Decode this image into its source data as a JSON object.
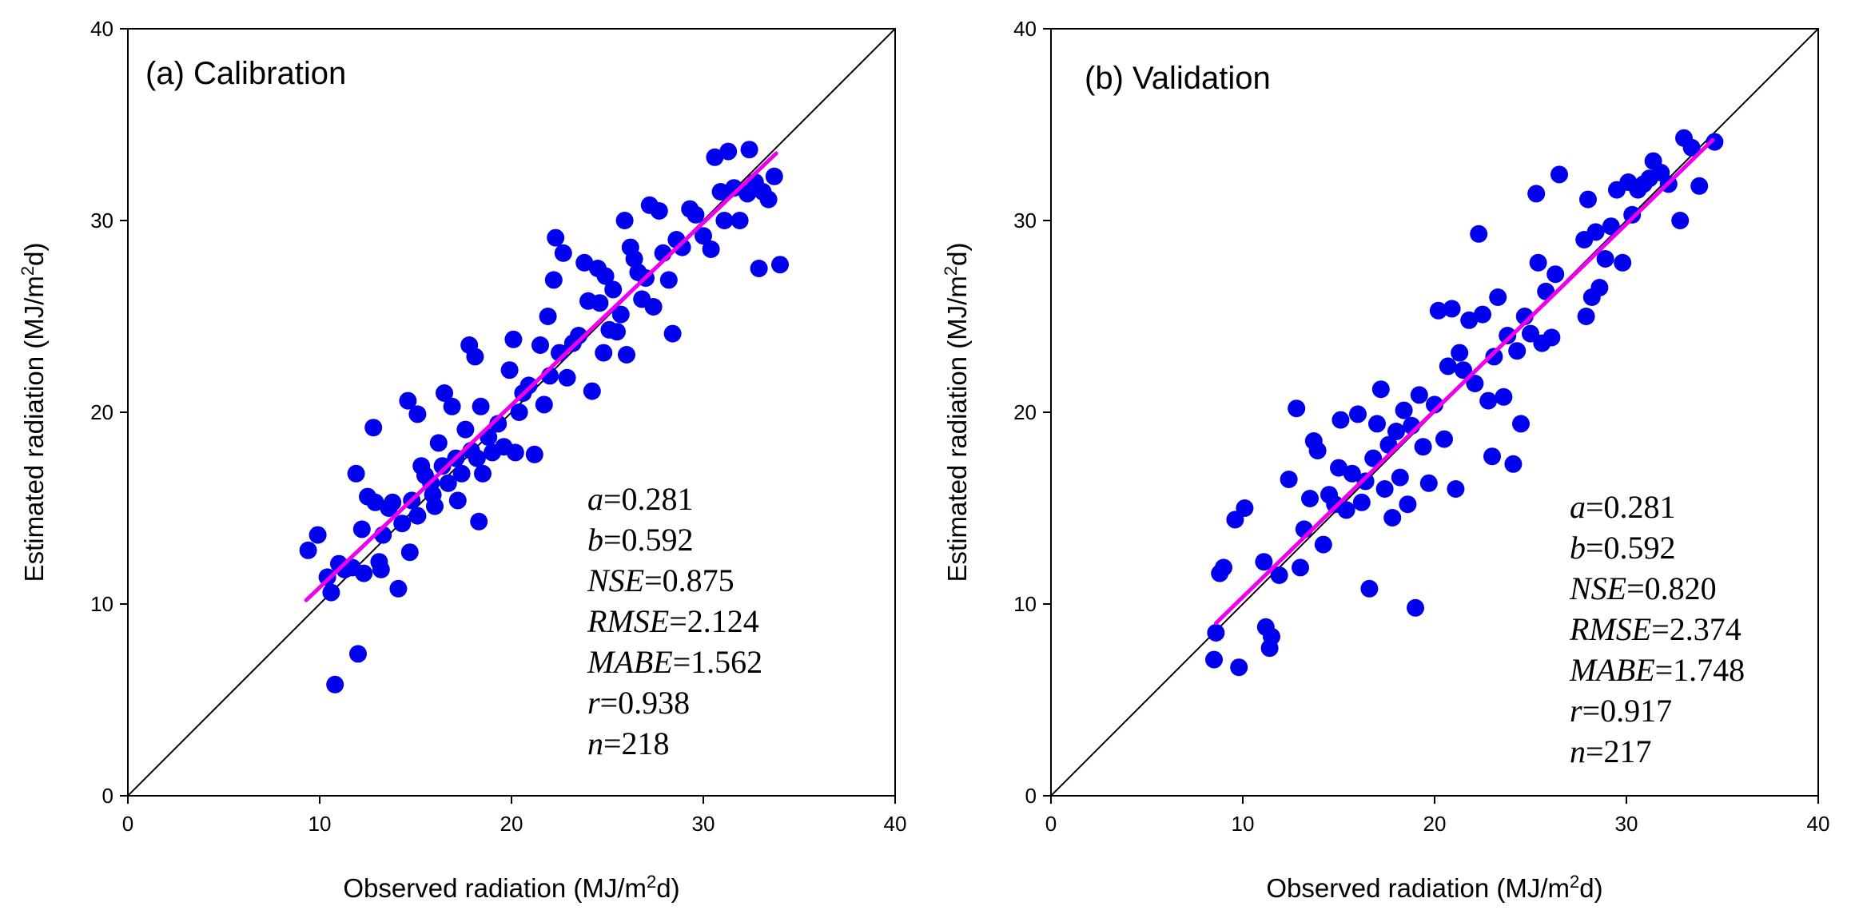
{
  "chart_data": [
    {
      "type": "scatter",
      "title": "(a) Calibration",
      "xlabel": {
        "pre": "Observed radiation (MJ/m",
        "sup": "2",
        "post": "d)"
      },
      "ylabel": {
        "pre": "Estimated radiation (MJ/m",
        "sup": "2",
        "post": "d)"
      },
      "xlim": [
        0,
        40
      ],
      "ylim": [
        0,
        40
      ],
      "xticks": [
        "0",
        "10",
        "20",
        "30",
        "40"
      ],
      "yticks": [
        "0",
        "10",
        "20",
        "30",
        "40"
      ],
      "marker_color": "#0000ee",
      "fit_color": "#ee00ee",
      "identity_line": [
        [
          0,
          0
        ],
        [
          40,
          40
        ]
      ],
      "fit_line": {
        "x": [
          9.3,
          33.8
        ],
        "y": [
          10.2,
          33.5
        ]
      },
      "stats": [
        {
          "sym": "a",
          "val": "=0.281"
        },
        {
          "sym": "b",
          "val": "=0.592"
        },
        {
          "sym": "NSE",
          "val": "=0.875"
        },
        {
          "sym": "RMSE",
          "val": "=2.124"
        },
        {
          "sym": "MABE",
          "val": "=1.562"
        },
        {
          "sym": "r",
          "val": "=0.938"
        },
        {
          "sym": "n",
          "val": "=218"
        }
      ],
      "series": [
        {
          "name": "Calibration",
          "points": [
            [
              9.4,
              12.8
            ],
            [
              9.9,
              13.6
            ],
            [
              10.4,
              11.4
            ],
            [
              10.6,
              10.6
            ],
            [
              10.8,
              5.8
            ],
            [
              11.0,
              12.1
            ],
            [
              11.3,
              11.8
            ],
            [
              11.7,
              11.9
            ],
            [
              11.9,
              16.8
            ],
            [
              12.0,
              7.4
            ],
            [
              12.2,
              13.9
            ],
            [
              12.3,
              11.6
            ],
            [
              12.5,
              15.6
            ],
            [
              12.8,
              19.2
            ],
            [
              12.9,
              15.3
            ],
            [
              13.1,
              12.2
            ],
            [
              13.2,
              11.8
            ],
            [
              13.3,
              13.6
            ],
            [
              13.6,
              15.0
            ],
            [
              13.8,
              15.3
            ],
            [
              14.1,
              10.8
            ],
            [
              14.3,
              14.2
            ],
            [
              14.6,
              20.6
            ],
            [
              14.7,
              12.7
            ],
            [
              14.8,
              15.4
            ],
            [
              15.1,
              19.9
            ],
            [
              15.1,
              14.6
            ],
            [
              15.3,
              17.2
            ],
            [
              15.5,
              16.7
            ],
            [
              15.8,
              16.3
            ],
            [
              15.9,
              15.7
            ],
            [
              16.0,
              15.1
            ],
            [
              16.2,
              18.4
            ],
            [
              16.4,
              17.2
            ],
            [
              16.5,
              21.0
            ],
            [
              16.7,
              16.3
            ],
            [
              16.9,
              20.3
            ],
            [
              17.1,
              17.6
            ],
            [
              17.2,
              15.4
            ],
            [
              17.4,
              16.8
            ],
            [
              17.6,
              19.1
            ],
            [
              17.8,
              23.5
            ],
            [
              17.9,
              18.0
            ],
            [
              18.1,
              22.9
            ],
            [
              18.2,
              17.6
            ],
            [
              18.3,
              14.3
            ],
            [
              18.4,
              20.3
            ],
            [
              18.5,
              16.8
            ],
            [
              18.8,
              18.7
            ],
            [
              19.0,
              17.9
            ],
            [
              19.3,
              19.4
            ],
            [
              19.6,
              18.2
            ],
            [
              19.9,
              22.2
            ],
            [
              20.1,
              23.8
            ],
            [
              20.2,
              17.9
            ],
            [
              20.4,
              20.0
            ],
            [
              20.6,
              21.0
            ],
            [
              20.9,
              21.4
            ],
            [
              21.2,
              17.8
            ],
            [
              21.5,
              23.5
            ],
            [
              21.7,
              20.4
            ],
            [
              21.9,
              25.0
            ],
            [
              22.0,
              21.9
            ],
            [
              22.2,
              26.9
            ],
            [
              22.3,
              29.1
            ],
            [
              22.5,
              23.1
            ],
            [
              22.7,
              28.3
            ],
            [
              22.9,
              21.8
            ],
            [
              23.2,
              23.6
            ],
            [
              23.5,
              24.0
            ],
            [
              23.8,
              27.8
            ],
            [
              24.0,
              25.8
            ],
            [
              24.2,
              21.1
            ],
            [
              24.5,
              27.5
            ],
            [
              24.6,
              25.7
            ],
            [
              24.8,
              23.1
            ],
            [
              24.9,
              27.1
            ],
            [
              25.1,
              24.3
            ],
            [
              25.3,
              26.4
            ],
            [
              25.5,
              24.2
            ],
            [
              25.7,
              25.1
            ],
            [
              25.9,
              30.0
            ],
            [
              26.0,
              23.0
            ],
            [
              26.2,
              28.6
            ],
            [
              26.4,
              28.0
            ],
            [
              26.6,
              27.3
            ],
            [
              26.8,
              25.9
            ],
            [
              27.0,
              27.0
            ],
            [
              27.2,
              30.8
            ],
            [
              27.4,
              25.5
            ],
            [
              27.7,
              30.5
            ],
            [
              27.9,
              28.3
            ],
            [
              28.2,
              26.9
            ],
            [
              28.4,
              24.1
            ],
            [
              28.6,
              29.0
            ],
            [
              28.9,
              28.6
            ],
            [
              29.3,
              30.6
            ],
            [
              29.6,
              30.3
            ],
            [
              30.0,
              29.2
            ],
            [
              30.4,
              28.5
            ],
            [
              30.6,
              33.3
            ],
            [
              30.9,
              31.5
            ],
            [
              31.1,
              30.0
            ],
            [
              31.3,
              33.6
            ],
            [
              31.6,
              31.7
            ],
            [
              31.9,
              30.0
            ],
            [
              32.3,
              31.4
            ],
            [
              32.4,
              33.7
            ],
            [
              32.7,
              32.0
            ],
            [
              32.9,
              27.5
            ],
            [
              33.1,
              31.5
            ],
            [
              33.4,
              31.1
            ],
            [
              33.7,
              32.3
            ],
            [
              34.0,
              27.7
            ]
          ]
        }
      ]
    },
    {
      "type": "scatter",
      "title": "(b) Validation",
      "xlabel": {
        "pre": "Observed radiation (MJ/m",
        "sup": "2",
        "post": "d)"
      },
      "ylabel": {
        "pre": "Estimated radiation (MJ/m",
        "sup": "2",
        "post": "d)"
      },
      "xlim": [
        0,
        40
      ],
      "ylim": [
        0,
        40
      ],
      "xticks": [
        "0",
        "10",
        "20",
        "30",
        "40"
      ],
      "yticks": [
        "0",
        "10",
        "20",
        "30",
        "40"
      ],
      "marker_color": "#0000ee",
      "fit_color": "#ee00ee",
      "identity_line": [
        [
          0,
          0
        ],
        [
          40,
          40
        ]
      ],
      "fit_line": {
        "x": [
          8.6,
          34.5
        ],
        "y": [
          9.0,
          34.2
        ]
      },
      "stats": [
        {
          "sym": "a",
          "val": "=0.281"
        },
        {
          "sym": "b",
          "val": "=0.592"
        },
        {
          "sym": "NSE",
          "val": "=0.820"
        },
        {
          "sym": "RMSE",
          "val": "=2.374"
        },
        {
          "sym": "MABE",
          "val": "=1.748"
        },
        {
          "sym": "r",
          "val": "=0.917"
        },
        {
          "sym": "n",
          "val": "=217"
        }
      ],
      "series": [
        {
          "name": "Validation",
          "points": [
            [
              8.5,
              7.1
            ],
            [
              8.6,
              8.5
            ],
            [
              8.8,
              11.6
            ],
            [
              9.0,
              11.9
            ],
            [
              9.6,
              14.4
            ],
            [
              9.8,
              6.7
            ],
            [
              10.1,
              15.0
            ],
            [
              11.1,
              12.2
            ],
            [
              11.2,
              8.8
            ],
            [
              11.4,
              7.7
            ],
            [
              11.5,
              8.3
            ],
            [
              11.9,
              11.5
            ],
            [
              12.4,
              16.5
            ],
            [
              12.8,
              20.2
            ],
            [
              13.0,
              11.9
            ],
            [
              13.2,
              13.9
            ],
            [
              13.5,
              15.5
            ],
            [
              13.7,
              18.5
            ],
            [
              13.9,
              18.0
            ],
            [
              14.2,
              13.1
            ],
            [
              14.5,
              15.7
            ],
            [
              14.8,
              15.2
            ],
            [
              15.0,
              17.1
            ],
            [
              15.1,
              19.6
            ],
            [
              15.4,
              14.9
            ],
            [
              15.7,
              16.8
            ],
            [
              16.0,
              19.9
            ],
            [
              16.2,
              15.3
            ],
            [
              16.4,
              16.4
            ],
            [
              16.6,
              10.8
            ],
            [
              16.8,
              17.6
            ],
            [
              17.0,
              19.4
            ],
            [
              17.2,
              21.2
            ],
            [
              17.4,
              16.0
            ],
            [
              17.6,
              18.3
            ],
            [
              17.8,
              14.5
            ],
            [
              18.0,
              19.0
            ],
            [
              18.2,
              16.6
            ],
            [
              18.4,
              20.1
            ],
            [
              18.6,
              15.2
            ],
            [
              18.8,
              19.3
            ],
            [
              19.0,
              9.8
            ],
            [
              19.2,
              20.9
            ],
            [
              19.4,
              18.2
            ],
            [
              19.7,
              16.3
            ],
            [
              20.0,
              20.4
            ],
            [
              20.2,
              25.3
            ],
            [
              20.5,
              18.6
            ],
            [
              20.7,
              22.4
            ],
            [
              20.9,
              25.4
            ],
            [
              21.1,
              16.0
            ],
            [
              21.3,
              23.1
            ],
            [
              21.5,
              22.2
            ],
            [
              21.8,
              24.8
            ],
            [
              22.1,
              21.5
            ],
            [
              22.3,
              29.3
            ],
            [
              22.5,
              25.1
            ],
            [
              22.8,
              20.6
            ],
            [
              23.0,
              17.7
            ],
            [
              23.1,
              22.9
            ],
            [
              23.3,
              26.0
            ],
            [
              23.6,
              20.8
            ],
            [
              23.8,
              24.0
            ],
            [
              24.1,
              17.3
            ],
            [
              24.3,
              23.2
            ],
            [
              24.5,
              19.4
            ],
            [
              24.7,
              25.0
            ],
            [
              25.0,
              24.1
            ],
            [
              25.3,
              31.4
            ],
            [
              25.4,
              27.8
            ],
            [
              25.6,
              23.6
            ],
            [
              25.8,
              26.3
            ],
            [
              26.1,
              23.9
            ],
            [
              26.3,
              27.2
            ],
            [
              26.5,
              32.4
            ],
            [
              27.8,
              29.0
            ],
            [
              27.9,
              25.0
            ],
            [
              28.0,
              31.1
            ],
            [
              28.2,
              26.0
            ],
            [
              28.4,
              29.4
            ],
            [
              28.6,
              26.5
            ],
            [
              28.9,
              28.0
            ],
            [
              29.2,
              29.7
            ],
            [
              29.5,
              31.6
            ],
            [
              29.8,
              27.8
            ],
            [
              30.1,
              32.0
            ],
            [
              30.3,
              30.3
            ],
            [
              30.6,
              31.6
            ],
            [
              30.9,
              31.9
            ],
            [
              31.2,
              32.2
            ],
            [
              31.4,
              33.1
            ],
            [
              31.8,
              32.5
            ],
            [
              32.2,
              31.9
            ],
            [
              32.8,
              30.0
            ],
            [
              33.0,
              34.3
            ],
            [
              33.4,
              33.8
            ],
            [
              33.8,
              31.8
            ],
            [
              34.6,
              34.1
            ]
          ]
        }
      ]
    }
  ]
}
